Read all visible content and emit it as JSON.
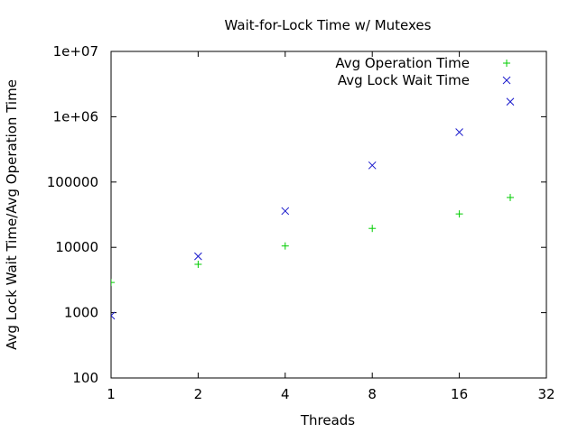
{
  "chart_data": {
    "type": "scatter",
    "title": "Wait-for-Lock Time w/ Mutexes",
    "xlabel": "Threads",
    "ylabel": "Avg Lock Wait Time/Avg Operation Time",
    "x_scale": "log2",
    "y_scale": "log10",
    "xlim": [
      1,
      32
    ],
    "ylim": [
      100,
      10000000
    ],
    "x_ticks": [
      {
        "value": 1,
        "label": "1"
      },
      {
        "value": 2,
        "label": "2"
      },
      {
        "value": 4,
        "label": "4"
      },
      {
        "value": 8,
        "label": "8"
      },
      {
        "value": 16,
        "label": "16"
      },
      {
        "value": 32,
        "label": "32"
      }
    ],
    "y_ticks": [
      {
        "value": 100,
        "label": "100"
      },
      {
        "value": 1000,
        "label": "1000"
      },
      {
        "value": 10000,
        "label": "10000"
      },
      {
        "value": 100000,
        "label": "100000"
      },
      {
        "value": 1000000,
        "label": "1e+06"
      },
      {
        "value": 10000000,
        "label": "1e+07"
      }
    ],
    "grid": false,
    "legend_position": "top-right",
    "series": [
      {
        "name": "Avg Operation Time",
        "marker": "plus",
        "color": "#00cc00",
        "points": [
          [
            1,
            2900
          ],
          [
            2,
            5500
          ],
          [
            4,
            10500
          ],
          [
            8,
            19500
          ],
          [
            16,
            32500
          ],
          [
            24,
            58000
          ]
        ]
      },
      {
        "name": "Avg Lock Wait Time",
        "marker": "cross",
        "color": "#1a1acc",
        "points": [
          [
            1,
            900
          ],
          [
            2,
            7300
          ],
          [
            4,
            36000
          ],
          [
            8,
            180000
          ],
          [
            16,
            580000
          ],
          [
            24,
            1700000
          ]
        ]
      }
    ]
  }
}
